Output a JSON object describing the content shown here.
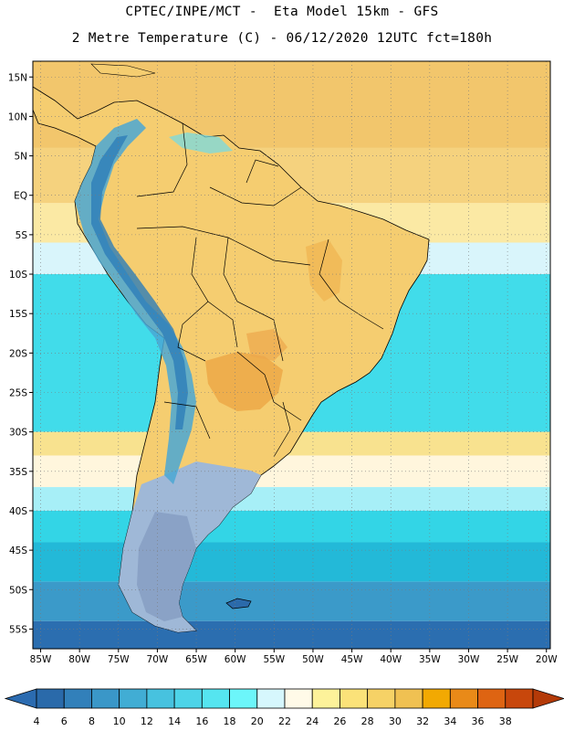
{
  "title": {
    "line1": "CPTEC/INPE/MCT -  Eta Model 15km - GFS",
    "line2": "2 Metre Temperature (C) - 06/12/2020 12UTC fct=180h"
  },
  "map": {
    "lon_min": -86,
    "lon_max": -19.5,
    "lat_min": -57.5,
    "lat_max": 17,
    "lon_ticks": [
      {
        "value": -85,
        "label": "85W"
      },
      {
        "value": -80,
        "label": "80W"
      },
      {
        "value": -75,
        "label": "75W"
      },
      {
        "value": -70,
        "label": "70W"
      },
      {
        "value": -65,
        "label": "65W"
      },
      {
        "value": -60,
        "label": "60W"
      },
      {
        "value": -55,
        "label": "55W"
      },
      {
        "value": -50,
        "label": "50W"
      },
      {
        "value": -45,
        "label": "45W"
      },
      {
        "value": -40,
        "label": "40W"
      },
      {
        "value": -35,
        "label": "35W"
      },
      {
        "value": -30,
        "label": "30W"
      },
      {
        "value": -25,
        "label": "25W"
      },
      {
        "value": -20,
        "label": "20W"
      }
    ],
    "lat_ticks": [
      {
        "value": 15,
        "label": "15N"
      },
      {
        "value": 10,
        "label": "10N"
      },
      {
        "value": 5,
        "label": "5N"
      },
      {
        "value": 0,
        "label": "EQ"
      },
      {
        "value": -5,
        "label": "5S"
      },
      {
        "value": -10,
        "label": "10S"
      },
      {
        "value": -15,
        "label": "15S"
      },
      {
        "value": -20,
        "label": "20S"
      },
      {
        "value": -25,
        "label": "25S"
      },
      {
        "value": -30,
        "label": "30S"
      },
      {
        "value": -35,
        "label": "35S"
      },
      {
        "value": -40,
        "label": "40S"
      },
      {
        "value": -45,
        "label": "45S"
      },
      {
        "value": -50,
        "label": "50S"
      },
      {
        "value": -55,
        "label": "55S"
      }
    ],
    "grid": "dotted",
    "ocean_bands": [
      {
        "lat_top": 17,
        "color": "#f2c66c"
      },
      {
        "lat_top": 6,
        "color": "#f5d27e"
      },
      {
        "lat_top": -1,
        "color": "#fbe9a4"
      },
      {
        "lat_top": -6,
        "color": "#d9f5fb"
      },
      {
        "lat_top": -10,
        "color": "#41dcea"
      },
      {
        "lat_top": -30,
        "color": "#f8e28f"
      },
      {
        "lat_top": -33,
        "color": "#fff6dd"
      },
      {
        "lat_top": -37,
        "color": "#a7eff7"
      },
      {
        "lat_top": -40,
        "color": "#33d5e6"
      },
      {
        "lat_top": -44,
        "color": "#23b9d8"
      },
      {
        "lat_top": -49,
        "color": "#3b9ac9"
      },
      {
        "lat_top": -54,
        "color": "#2b6eb0"
      }
    ]
  },
  "colorbar": {
    "colors": [
      "#2a6aaa",
      "#3280ba",
      "#3a97c8",
      "#41add4",
      "#47c2df",
      "#4dd4e8",
      "#55e5f0",
      "#6cf6fa",
      "#d6f7fd",
      "#fffae8",
      "#fdf29a",
      "#fbe279",
      "#f6d266",
      "#f0c152",
      "#f2a902",
      "#e98a18",
      "#de6412",
      "#c8470c"
    ],
    "left_arrow_color": "#2b6bb0",
    "right_arrow_color": "#b43a08",
    "labels": [
      "4",
      "6",
      "8",
      "10",
      "12",
      "14",
      "16",
      "18",
      "20",
      "22",
      "24",
      "26",
      "28",
      "30",
      "32",
      "34",
      "36",
      "38"
    ]
  }
}
